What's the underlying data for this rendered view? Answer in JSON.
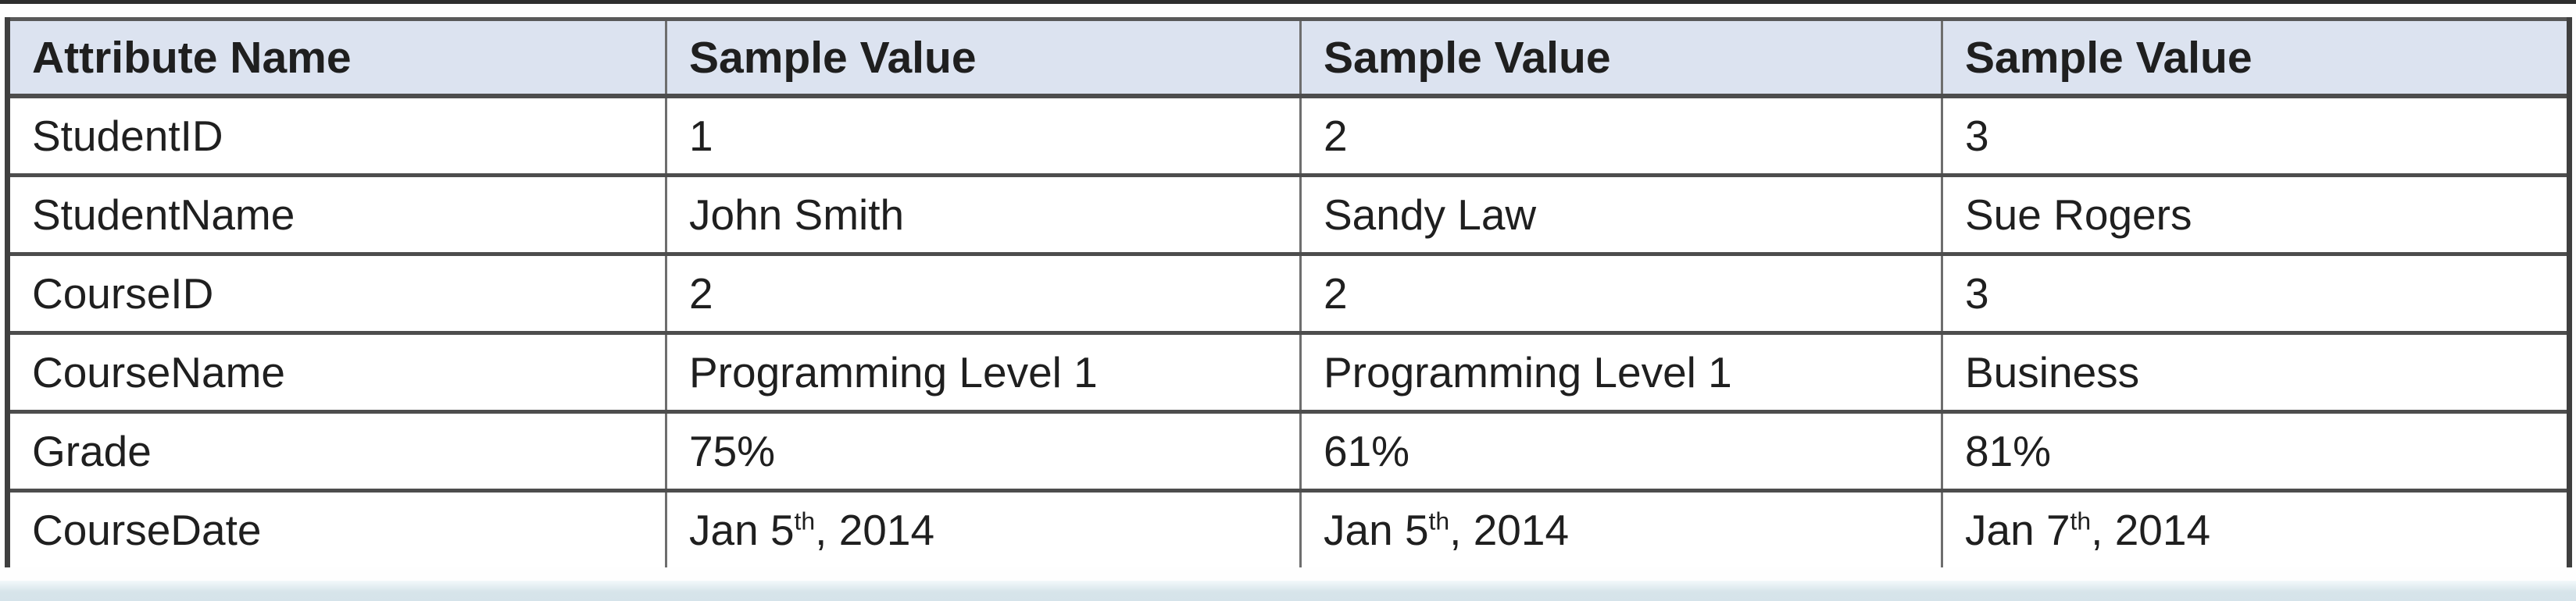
{
  "decor": {
    "top_line_color": "#2e2e2e",
    "bottom_strip_color": "#d7e4ea"
  },
  "table": {
    "header_bg": "#dce3f0",
    "border_color": "#4d4d4d",
    "grid_color": "#6e6e6e",
    "text_color": "#1f1f1f",
    "columns": [
      {
        "label": "Attribute Name"
      },
      {
        "label": "Sample Value"
      },
      {
        "label": "Sample Value"
      },
      {
        "label": "Sample Value"
      }
    ],
    "rows": [
      {
        "attribute": "StudentID",
        "values": [
          "1",
          "2",
          "3"
        ]
      },
      {
        "attribute": "StudentName",
        "values": [
          "John Smith",
          "Sandy Law",
          "Sue Rogers"
        ]
      },
      {
        "attribute": "CourseID",
        "values": [
          "2",
          "2",
          "3"
        ]
      },
      {
        "attribute": "CourseName",
        "values": [
          "Programming Level 1",
          "Programming Level 1",
          "Business"
        ]
      },
      {
        "attribute": "Grade",
        "values": [
          "75%",
          "61%",
          "81%"
        ]
      },
      {
        "attribute": "CourseDate",
        "values": [
          {
            "text": "Jan 5",
            "sup": "th",
            "tail": ", 2014"
          },
          {
            "text": "Jan 5",
            "sup": "th",
            "tail": ", 2014"
          },
          {
            "text": "Jan 7",
            "sup": "th",
            "tail": ", 2014"
          }
        ]
      }
    ]
  }
}
